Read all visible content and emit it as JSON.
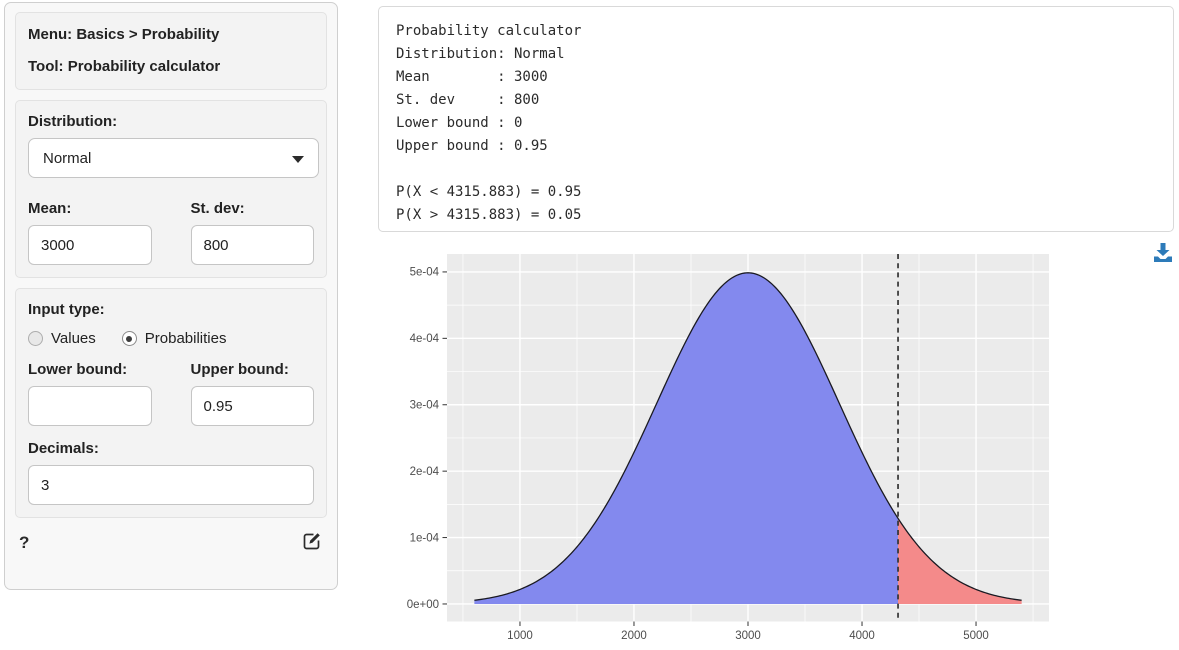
{
  "sidebar": {
    "menu_panel": {
      "menu_label": "Menu: Basics > Probability",
      "tool_label": "Tool: Probability calculator"
    },
    "distribution_panel": {
      "distribution_label": "Distribution:",
      "distribution_value": "Normal",
      "mean_label": "Mean:",
      "mean_value": "3000",
      "stdev_label": "St. dev:",
      "stdev_value": "800"
    },
    "input_panel": {
      "input_type_label": "Input type:",
      "radio_options": [
        {
          "label": "Values",
          "selected": false
        },
        {
          "label": "Probabilities",
          "selected": true
        }
      ],
      "lower_bound_label": "Lower bound:",
      "lower_bound_value": "",
      "upper_bound_label": "Upper bound:",
      "upper_bound_value": "0.95",
      "decimals_label": "Decimals:",
      "decimals_value": "3"
    },
    "footer": {
      "help_label": "?"
    }
  },
  "console": {
    "lines": [
      "Probability calculator",
      "Distribution: Normal",
      "Mean        : 3000",
      "St. dev     : 800",
      "Lower bound : 0",
      "Upper bound : 0.95",
      "",
      "P(X < 4315.883) = 0.95",
      "P(X > 4315.883) = 0.05"
    ]
  },
  "chart_data": {
    "type": "area",
    "subtype": "normal-density-curve",
    "title": "",
    "xlabel": "",
    "ylabel": "",
    "distribution": "Normal",
    "mean": 3000,
    "st_dev": 800,
    "x_range": [
      600,
      5400
    ],
    "cutoff_value": 4315.883,
    "p_below_cutoff": 0.95,
    "p_above_cutoff": 0.05,
    "x_ticks": [
      1000,
      2000,
      3000,
      4000,
      5000
    ],
    "y_ticks": [
      {
        "label": "0e+00",
        "value": 0
      },
      {
        "label": "1e-04",
        "value": 0.0001
      },
      {
        "label": "2e-04",
        "value": 0.0002
      },
      {
        "label": "3e-04",
        "value": 0.0003
      },
      {
        "label": "4e-04",
        "value": 0.0004
      },
      {
        "label": "5e-04",
        "value": 0.0005
      }
    ],
    "xlim": [
      360,
      5640
    ],
    "ylim": [
      -2.64e-05,
      0.000527
    ],
    "grid": true,
    "legend": "none",
    "colors": {
      "lower_region_fill": "#8389EE",
      "upper_region_fill": "#F48A8A",
      "density_line": "#1A1A22",
      "cutoff_line": "#333333",
      "panel_background": "#EBEBEB",
      "gridline": "#FFFFFF",
      "tick_label": "#4d4d4d",
      "download_icon": "#2D7BB9"
    }
  }
}
